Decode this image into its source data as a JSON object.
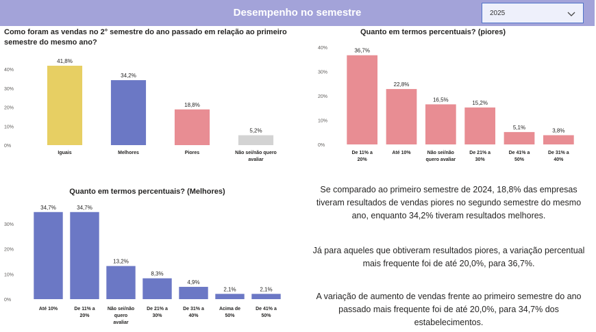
{
  "header": {
    "title": "Desempenho no semestre",
    "year_select": {
      "value": "2025"
    }
  },
  "colors": {
    "header_bg": "#a3a3d9",
    "iguais": "#e7cf63",
    "melhores": "#6b78c5",
    "piores": "#e88d93",
    "nao_sei": "#d3d3d3"
  },
  "chart_data": [
    {
      "id": "chart1",
      "type": "bar",
      "title_lines": [
        "Como foram as vendas no 2° semestre do ano passado em relação ao primeiro",
        "semestre do mesmo ano?"
      ],
      "categories": [
        [
          "Iguais"
        ],
        [
          "Melhores"
        ],
        [
          "Piores"
        ],
        [
          "Não sei/não quero",
          "avaliar"
        ]
      ],
      "values": [
        41.8,
        34.2,
        18.8,
        5.2
      ],
      "labels": [
        "41,8%",
        "34,2%",
        "18,8%",
        "5,2%"
      ],
      "colors": [
        "#e7cf63",
        "#6b78c5",
        "#e88d93",
        "#d3d3d3"
      ],
      "ylim": [
        0,
        40
      ],
      "yticks": [
        "0%",
        "10%",
        "20%",
        "30%",
        "40%"
      ]
    },
    {
      "id": "chart2",
      "type": "bar",
      "title_lines": [
        "Quanto em termos percentuais? (piores)"
      ],
      "categories": [
        [
          "De 11% a",
          "20%"
        ],
        [
          "Até 10%"
        ],
        [
          "Não sei/não",
          "quero avaliar"
        ],
        [
          "De 21% a",
          "30%"
        ],
        [
          "De 41% a",
          "50%"
        ],
        [
          "De 31% a",
          "40%"
        ]
      ],
      "values": [
        36.7,
        22.8,
        16.5,
        15.2,
        5.1,
        3.8
      ],
      "labels": [
        "36,7%",
        "22,8%",
        "16,5%",
        "15,2%",
        "5,1%",
        "3,8%"
      ],
      "colors": [
        "#e88d93",
        "#e88d93",
        "#e88d93",
        "#e88d93",
        "#e88d93",
        "#e88d93"
      ],
      "ylim": [
        0,
        40
      ],
      "yticks": [
        "0%",
        "10%",
        "20%",
        "30%",
        "40%"
      ]
    },
    {
      "id": "chart3",
      "type": "bar",
      "title_lines": [
        "Quanto em termos percentuais? (Melhores)"
      ],
      "categories": [
        [
          "Até 10%"
        ],
        [
          "De 11% a",
          "20%"
        ],
        [
          "Não sei/não",
          "quero",
          "avaliar"
        ],
        [
          "De 21% a",
          "30%"
        ],
        [
          "De 31% a",
          "40%"
        ],
        [
          "Acima de",
          "50%"
        ],
        [
          "De 41% a",
          "50%"
        ]
      ],
      "values": [
        34.7,
        34.7,
        13.2,
        8.3,
        4.9,
        2.1,
        2.1
      ],
      "labels": [
        "34,7%",
        "34,7%",
        "13,2%",
        "8,3%",
        "4,9%",
        "2,1%",
        "2,1%"
      ],
      "colors": [
        "#6b78c5",
        "#6b78c5",
        "#6b78c5",
        "#6b78c5",
        "#6b78c5",
        "#6b78c5",
        "#6b78c5"
      ],
      "ylim": [
        0,
        30
      ],
      "yticks": [
        "0%",
        "10%",
        "20%",
        "30%"
      ]
    }
  ],
  "summaries": [
    [
      "Se comparado ao primeiro semestre de 2024, 18,8% das empresas",
      "tiveram resultados de vendas piores no segundo semestre do mesmo",
      "ano, enquanto 34,2% tiveram resultados melhores."
    ],
    [
      "Já para aqueles que obtiveram resultados piores, a variação percentual",
      "mais frequente foi de até 20,0%, para 36,7%."
    ],
    [
      "A variação de aumento de vendas frente ao primeiro semestre do ano",
      "passado mais frequente foi de até 20,0%, para 34,7% dos",
      "estabelecimentos."
    ]
  ]
}
